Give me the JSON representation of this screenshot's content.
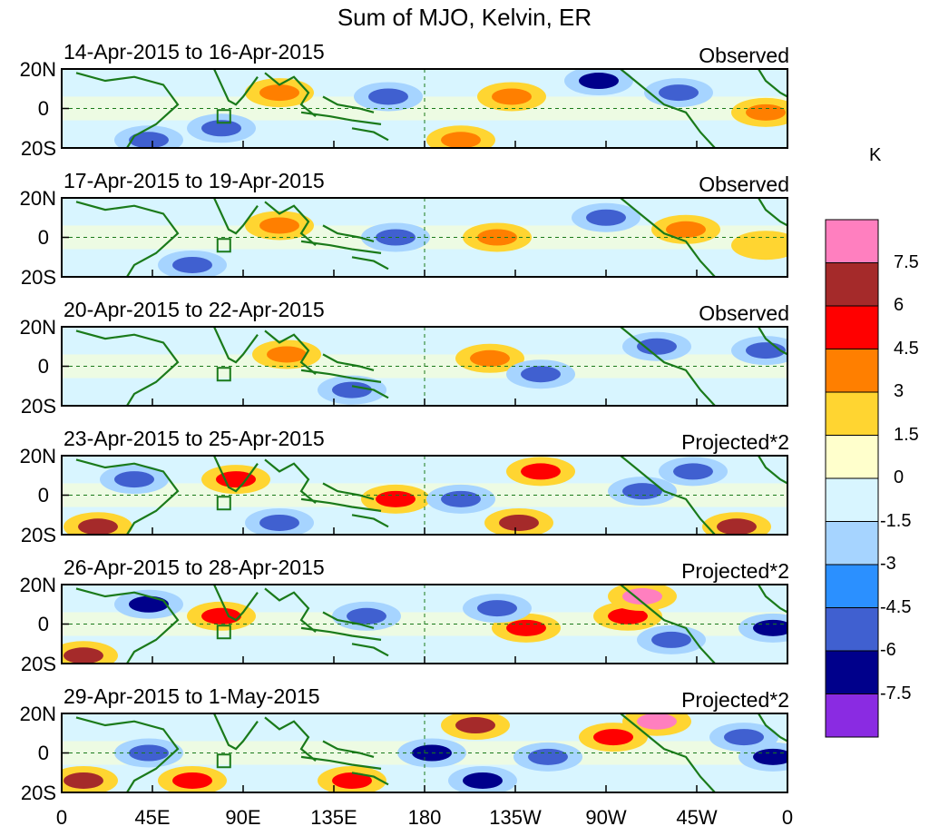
{
  "title": "Sum of MJO, Kelvin, ER",
  "units": "K",
  "panels": [
    {
      "dates": "14-Apr-2015 to 16-Apr-2015",
      "status": "Observed"
    },
    {
      "dates": "17-Apr-2015 to 19-Apr-2015",
      "status": "Observed"
    },
    {
      "dates": "20-Apr-2015 to 22-Apr-2015",
      "status": "Observed"
    },
    {
      "dates": "23-Apr-2015 to 25-Apr-2015",
      "status": "Projected*2"
    },
    {
      "dates": "26-Apr-2015 to 28-Apr-2015",
      "status": "Projected*2"
    },
    {
      "dates": "29-Apr-2015 to 1-May-2015",
      "status": "Projected*2"
    }
  ],
  "lat_ticks": [
    "20N",
    "0",
    "20S"
  ],
  "lon_ticks": [
    "0",
    "45E",
    "90E",
    "135E",
    "180",
    "135W",
    "90W",
    "45W",
    "0"
  ],
  "colorbar": {
    "labels": [
      "7.5",
      "6",
      "4.5",
      "3",
      "1.5",
      "0",
      "-1.5",
      "-3",
      "-4.5",
      "-6",
      "-7.5"
    ],
    "colors": [
      "#ff7fbf",
      "#a52a2a",
      "#ff0000",
      "#ff7f00",
      "#ffd531",
      "#ffffcc",
      "#d8f5ff",
      "#a6d4ff",
      "#2b90ff",
      "#4060d0",
      "#00008b",
      "#8a2be2"
    ]
  },
  "palette": {
    "coast": "#1a7a1a",
    "zero_line": "#1a7a1a",
    "ocean_light": "#d8f5ff"
  }
}
